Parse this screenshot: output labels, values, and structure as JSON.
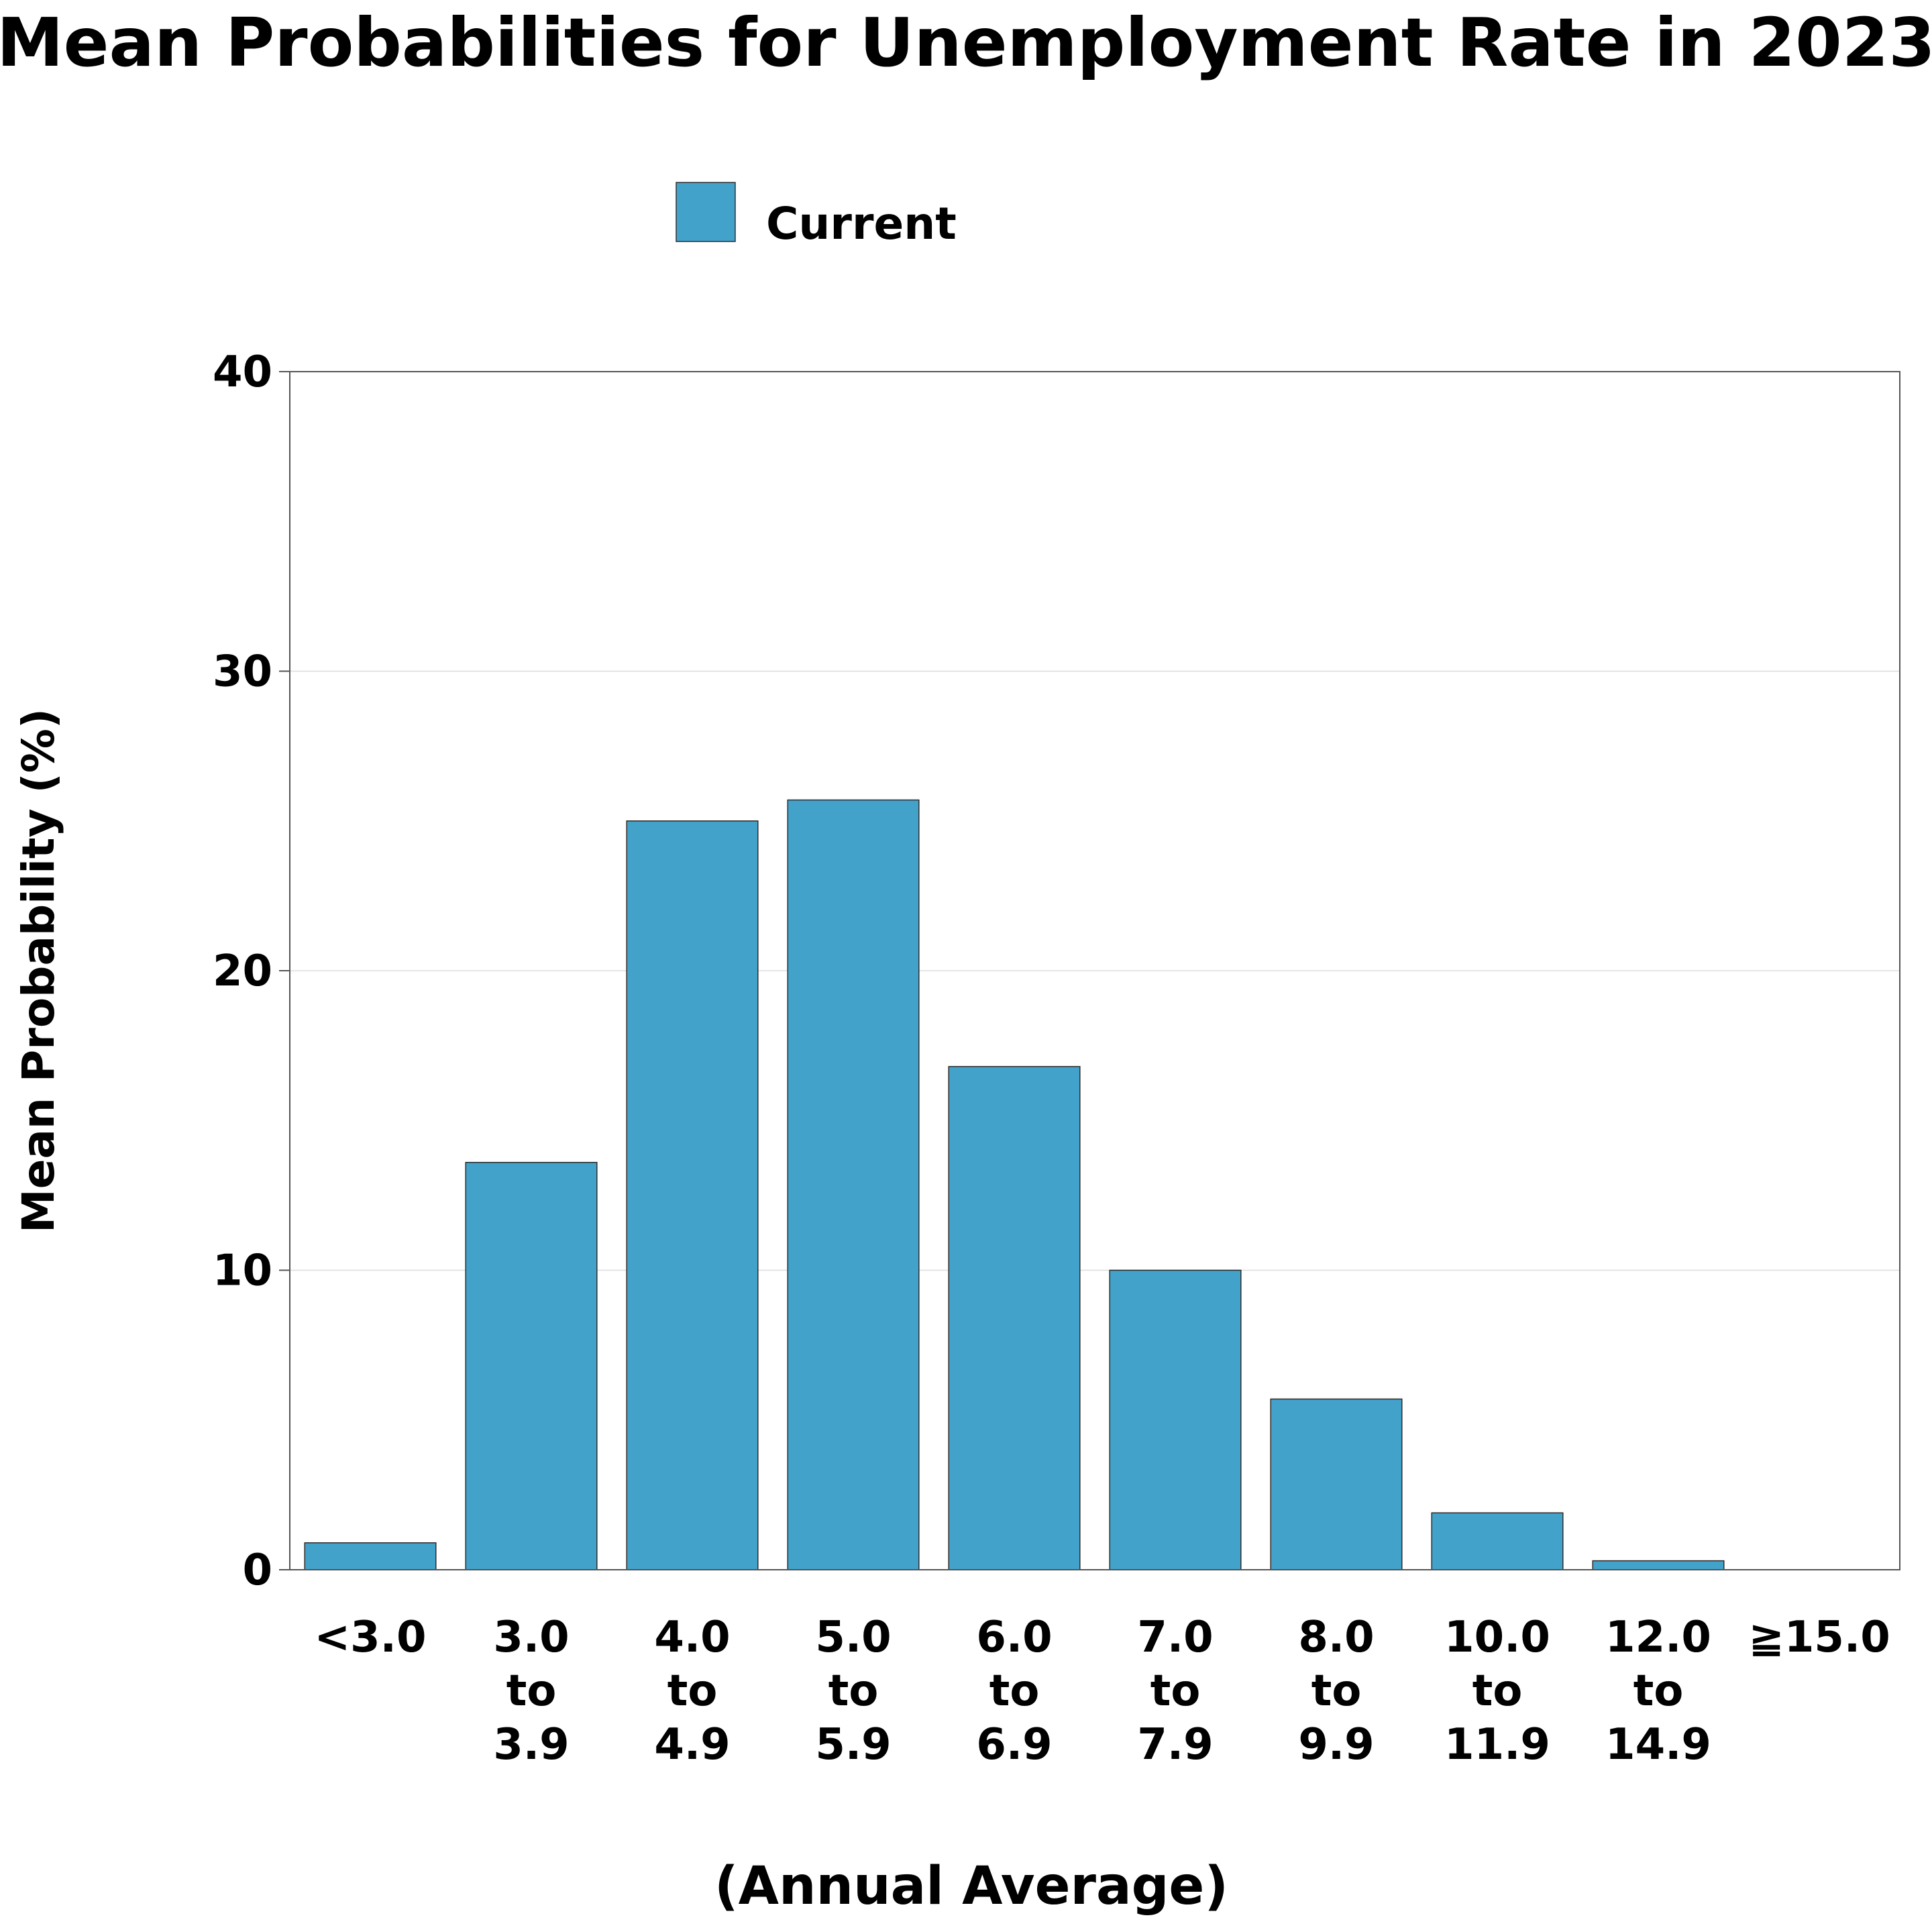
{
  "chart_data": {
    "type": "bar",
    "title": "Mean Probabilities for Unemployment Rate in 2023",
    "xlabel": "(Annual Average)",
    "ylabel": "Mean Probability (%)",
    "ylim": [
      0,
      40
    ],
    "yticks": [
      "0",
      "10",
      "20",
      "30",
      "40"
    ],
    "grid": true,
    "legend_position": "top-center",
    "categories": [
      [
        "<3.0"
      ],
      [
        "3.0",
        "to",
        "3.9"
      ],
      [
        "4.0",
        "to",
        "4.9"
      ],
      [
        "5.0",
        "to",
        "5.9"
      ],
      [
        "6.0",
        "to",
        "6.9"
      ],
      [
        "7.0",
        "to",
        "7.9"
      ],
      [
        "8.0",
        "to",
        "9.9"
      ],
      [
        "10.0",
        "to",
        "11.9"
      ],
      [
        "12.0",
        "to",
        "14.9"
      ],
      [
        "≧15.0"
      ]
    ],
    "series": [
      {
        "name": "Current",
        "color": "#43A2CA",
        "values": [
          0.9,
          13.6,
          25.0,
          25.7,
          16.8,
          10.0,
          5.7,
          1.9,
          0.3,
          0.0
        ]
      }
    ]
  }
}
